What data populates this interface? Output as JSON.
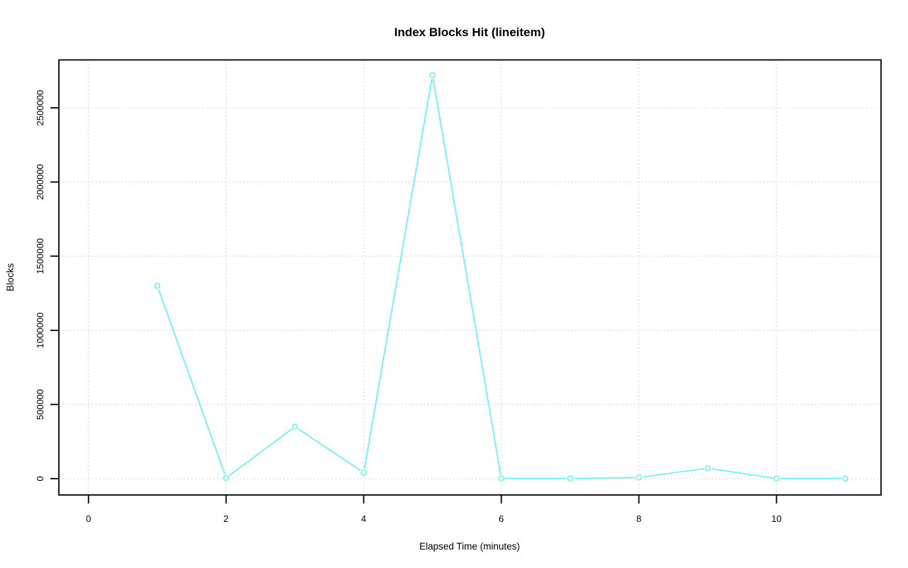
{
  "chart_data": {
    "type": "line",
    "title": "Index Blocks Hit (lineitem)",
    "xlabel": "Elapsed Time (minutes)",
    "ylabel": "Blocks",
    "x": [
      1,
      2,
      3,
      4,
      5,
      6,
      7,
      8,
      9,
      10,
      11
    ],
    "values": [
      1300000,
      5000,
      350000,
      40000,
      2720000,
      1000,
      1000,
      8000,
      70000,
      1000,
      1000
    ],
    "xticks": [
      0,
      2,
      4,
      6,
      8,
      10
    ],
    "yticks": [
      0,
      500000,
      1000000,
      1500000,
      2000000,
      2500000
    ],
    "xlim": [
      -0.43,
      11.52
    ],
    "ylim": [
      -110000,
      2823000
    ],
    "grid": true,
    "grid_style": "dotted",
    "legend": "none",
    "line_color": "#5ff5f5",
    "grid_color": "#c6c6c6",
    "axis_color": "#000000",
    "marker": "open-circle"
  }
}
